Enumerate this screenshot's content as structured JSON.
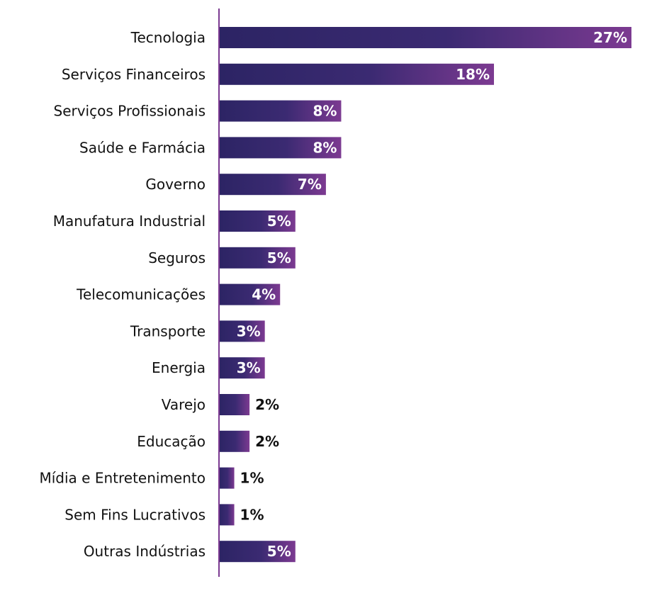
{
  "chart_data": {
    "type": "bar",
    "orientation": "horizontal",
    "title": "",
    "xlabel": "",
    "ylabel": "",
    "xlim": [
      0,
      27
    ],
    "grid": false,
    "legend": "none",
    "categories": [
      "Tecnologia",
      "Serviços Financeiros",
      "Serviços Profissionais",
      "Saúde e Farmácia",
      "Governo",
      "Manufatura Industrial",
      "Seguros",
      "Telecomunicações",
      "Transporte",
      "Energia",
      "Varejo",
      "Educação",
      "Mídia e Entretenimento",
      "Sem Fins Lucrativos",
      "Outras Indústrias"
    ],
    "values": [
      27,
      18,
      8,
      8,
      7,
      5,
      5,
      4,
      3,
      3,
      2,
      2,
      1,
      1,
      5
    ],
    "value_labels": [
      "27%",
      "18%",
      "8%",
      "8%",
      "7%",
      "5%",
      "5%",
      "4%",
      "3%",
      "3%",
      "2%",
      "2%",
      "1%",
      "1%",
      "5%"
    ],
    "colors": {
      "bar_start": "#2c2464",
      "bar_mid": "#3b2a72",
      "bar_end": "#7c3a91",
      "axis": "#7c3a91",
      "label_inside": "#ffffff",
      "label_outside": "#111111"
    }
  }
}
